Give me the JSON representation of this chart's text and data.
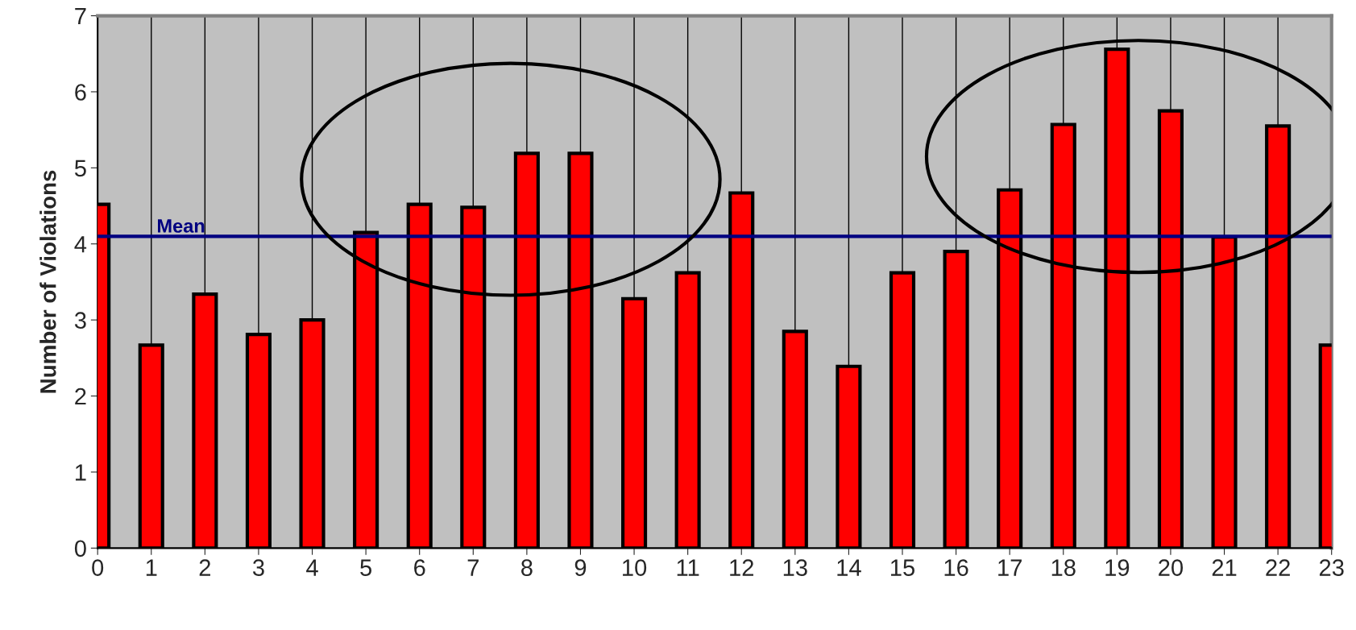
{
  "chart_data": {
    "type": "bar",
    "ylabel": "Number of Violations",
    "x": [
      0,
      1,
      2,
      3,
      4,
      5,
      6,
      7,
      8,
      9,
      10,
      11,
      12,
      13,
      14,
      15,
      16,
      17,
      18,
      19,
      20,
      21,
      22,
      23
    ],
    "values": [
      4.52,
      2.67,
      3.34,
      2.81,
      3.0,
      4.15,
      4.52,
      4.48,
      5.19,
      5.19,
      3.28,
      3.62,
      4.67,
      2.85,
      2.39,
      3.62,
      3.9,
      4.71,
      5.57,
      6.56,
      5.75,
      4.09,
      5.55,
      2.67
    ],
    "color": "#ff0000",
    "xlim": [
      0,
      23
    ],
    "xticks": [
      0,
      1,
      2,
      3,
      4,
      5,
      6,
      7,
      8,
      9,
      10,
      11,
      12,
      13,
      14,
      15,
      16,
      17,
      18,
      19,
      20,
      21,
      22,
      23
    ],
    "ylim": [
      0,
      7
    ],
    "yticks": [
      0,
      1,
      2,
      3,
      4,
      5,
      6,
      7
    ],
    "grid": "x",
    "ref_lines": [
      {
        "axis": "y",
        "value": 4.1,
        "label": "Mean",
        "color": "#000080"
      }
    ]
  }
}
